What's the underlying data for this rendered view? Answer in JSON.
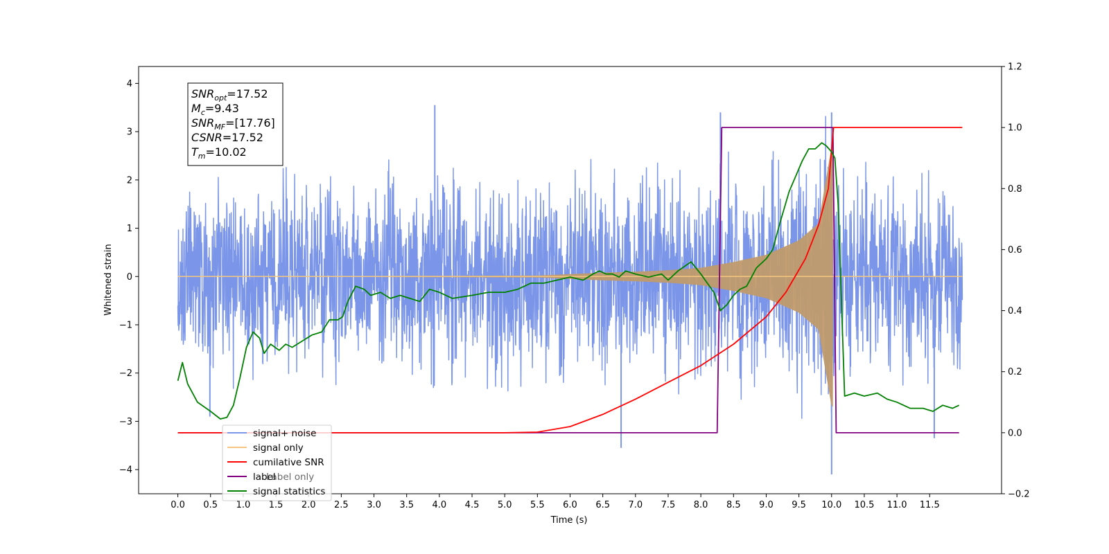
{
  "chart_data": {
    "type": "line",
    "xlabel": "Time (s)",
    "ylabel": "Whitened strain",
    "xlim": [
      -0.6,
      12.6
    ],
    "ylim": [
      -4.5,
      4.35
    ],
    "y2lim": [
      -0.2,
      1.2
    ],
    "x_ticks": [
      "0.0",
      "0.5",
      "1.0",
      "1.5",
      "2.0",
      "2.5",
      "3.0",
      "3.5",
      "4.0",
      "4.5",
      "5.0",
      "5.5",
      "6.0",
      "6.5",
      "7.0",
      "7.5",
      "8.0",
      "8.5",
      "9.0",
      "9.5",
      "10.0",
      "10.5",
      "11.0",
      "11.5"
    ],
    "y_ticks": [
      "4",
      "3",
      "2",
      "1",
      "0",
      "−1",
      "−2",
      "−3",
      "−4"
    ],
    "y2_ticks": [
      "1.2",
      "1.0",
      "0.8",
      "0.6",
      "0.4",
      "0.2",
      "0.0",
      "−0.2"
    ],
    "annotation": {
      "lines": [
        {
          "base": "SNR",
          "sub": "opt",
          "value": "=17.52"
        },
        {
          "base": "M",
          "sub": "c",
          "value": "=9.43"
        },
        {
          "base": "SNR",
          "sub": "MF",
          "value": "=[17.76]"
        },
        {
          "base": "CSNR",
          "sub": "",
          "value": "=17.52"
        },
        {
          "base": "T",
          "sub": "m",
          "value": "=10.02"
        }
      ]
    },
    "legend": {
      "placement": "lower-left",
      "entries": [
        {
          "label": "signal+ noise",
          "color": "#7b96e8"
        },
        {
          "label": "signal only",
          "color": "#f5c77e"
        },
        {
          "label": "cumilative SNR",
          "color": "#ff0000"
        },
        {
          "label": "label",
          "color": "#800080"
        },
        {
          "label": "signal statistics",
          "color": "#008000"
        }
      ],
      "ghost_text": [
        "Label only"
      ]
    },
    "series": [
      {
        "name": "signal+ noise",
        "axis": "left",
        "color": "#7b96e8",
        "x_range": [
          0.0,
          12.0
        ],
        "noise_envelope": [
          [
            0.0,
            2.4
          ],
          [
            1.0,
            2.6
          ],
          [
            2.0,
            2.7
          ],
          [
            3.0,
            2.7
          ],
          [
            4.0,
            2.8
          ],
          [
            5.0,
            2.7
          ],
          [
            6.0,
            2.7
          ],
          [
            7.0,
            2.7
          ],
          [
            8.0,
            2.7
          ],
          [
            8.5,
            2.8
          ],
          [
            9.0,
            2.9
          ],
          [
            9.5,
            2.8
          ],
          [
            10.0,
            3.0
          ],
          [
            11.0,
            2.6
          ],
          [
            12.0,
            2.5
          ]
        ],
        "spikes": [
          [
            3.93,
            3.55
          ],
          [
            6.78,
            -3.55
          ],
          [
            8.3,
            3.4
          ],
          [
            10.0,
            -4.1
          ],
          [
            10.0,
            3.4
          ],
          [
            11.57,
            -3.35
          ],
          [
            0.49,
            -2.9
          ]
        ]
      },
      {
        "name": "signal only",
        "axis": "left",
        "color": "#f5c77e",
        "fill_color": "#c09a6c",
        "x_range": [
          0.0,
          12.0
        ],
        "merger_time": 10.02,
        "amplitude_envelope": [
          [
            0.0,
            0.0
          ],
          [
            5.5,
            0.02
          ],
          [
            6.0,
            0.05
          ],
          [
            6.5,
            0.08
          ],
          [
            7.0,
            0.1
          ],
          [
            7.5,
            0.13
          ],
          [
            8.0,
            0.18
          ],
          [
            8.5,
            0.3
          ],
          [
            9.0,
            0.45
          ],
          [
            9.5,
            0.75
          ],
          [
            9.8,
            1.1
          ],
          [
            10.0,
            2.7
          ]
        ]
      },
      {
        "name": "cumilative SNR",
        "axis": "right",
        "color": "#ff0000",
        "x": [
          0.0,
          4.0,
          5.0,
          5.5,
          6.0,
          6.5,
          7.0,
          7.5,
          8.0,
          8.5,
          9.0,
          9.3,
          9.6,
          9.8,
          9.95,
          10.02,
          10.03,
          12.0
        ],
        "values": [
          0.0,
          0.0,
          0.0,
          0.002,
          0.02,
          0.06,
          0.11,
          0.165,
          0.22,
          0.29,
          0.38,
          0.46,
          0.57,
          0.68,
          0.8,
          0.98,
          1.0,
          1.0
        ]
      },
      {
        "name": "label",
        "axis": "right",
        "color": "#800080",
        "x": [
          0.0,
          8.25,
          8.32,
          10.02,
          10.07,
          11.95
        ],
        "values": [
          0.0,
          0.0,
          1.0,
          1.0,
          0.0,
          0.0
        ]
      },
      {
        "name": "signal statistics",
        "axis": "right",
        "color": "#008000",
        "x": [
          0.0,
          0.07,
          0.15,
          0.3,
          0.5,
          0.65,
          0.75,
          0.85,
          0.95,
          1.05,
          1.15,
          1.25,
          1.32,
          1.42,
          1.55,
          1.65,
          1.75,
          1.9,
          2.05,
          2.2,
          2.32,
          2.45,
          2.52,
          2.6,
          2.72,
          2.85,
          2.95,
          3.1,
          3.25,
          3.4,
          3.55,
          3.7,
          3.85,
          4.0,
          4.2,
          4.5,
          4.75,
          5.0,
          5.2,
          5.4,
          5.6,
          5.8,
          6.0,
          6.2,
          6.35,
          6.45,
          6.55,
          6.65,
          6.75,
          6.85,
          7.0,
          7.2,
          7.4,
          7.5,
          7.65,
          7.85,
          8.0,
          8.2,
          8.3,
          8.4,
          8.5,
          8.6,
          8.7,
          8.85,
          9.0,
          9.1,
          9.2,
          9.35,
          9.45,
          9.55,
          9.65,
          9.75,
          9.85,
          9.92,
          10.0,
          10.05,
          10.1,
          10.2,
          10.35,
          10.5,
          10.7,
          10.85,
          11.0,
          11.2,
          11.4,
          11.55,
          11.7,
          11.85,
          11.95
        ],
        "values": [
          0.17,
          0.23,
          0.16,
          0.1,
          0.07,
          0.045,
          0.05,
          0.09,
          0.18,
          0.28,
          0.33,
          0.31,
          0.26,
          0.29,
          0.27,
          0.29,
          0.28,
          0.3,
          0.32,
          0.33,
          0.37,
          0.37,
          0.38,
          0.43,
          0.48,
          0.47,
          0.45,
          0.46,
          0.44,
          0.45,
          0.44,
          0.43,
          0.47,
          0.46,
          0.44,
          0.45,
          0.46,
          0.46,
          0.47,
          0.49,
          0.49,
          0.5,
          0.51,
          0.5,
          0.52,
          0.53,
          0.52,
          0.52,
          0.51,
          0.53,
          0.52,
          0.51,
          0.52,
          0.5,
          0.53,
          0.56,
          0.52,
          0.46,
          0.4,
          0.42,
          0.45,
          0.47,
          0.48,
          0.54,
          0.57,
          0.6,
          0.68,
          0.79,
          0.84,
          0.89,
          0.93,
          0.93,
          0.95,
          0.94,
          0.92,
          0.9,
          0.75,
          0.12,
          0.13,
          0.12,
          0.13,
          0.11,
          0.1,
          0.08,
          0.08,
          0.07,
          0.09,
          0.08,
          0.09
        ]
      }
    ]
  }
}
